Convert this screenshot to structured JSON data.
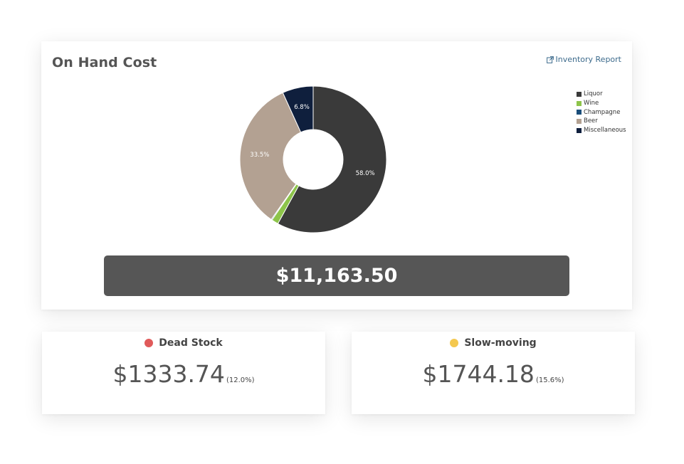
{
  "on_hand": {
    "title": "On Hand Cost",
    "report_link": "Inventory Report",
    "total": "$11,163.50"
  },
  "chart_data": {
    "type": "pie",
    "variant": "donut",
    "categories": [
      "Liquor",
      "Wine",
      "Champagne",
      "Beer",
      "Miscellaneous"
    ],
    "values": [
      58.0,
      1.5,
      0.2,
      33.5,
      6.8
    ],
    "slice_labels": [
      "58.0%",
      "",
      "",
      "33.5%",
      "6.8%"
    ],
    "colors": [
      "#3a3a3a",
      "#8dc44a",
      "#1b4e7a",
      "#b3a192",
      "#0f1f3d"
    ],
    "legend_position": "right"
  },
  "dead_stock": {
    "label": "Dead Stock",
    "value": "$1333.74",
    "percent": "(12.0%)",
    "dot_color": "#e05a5a"
  },
  "slow_moving": {
    "label": "Slow-moving",
    "value": "$1744.18",
    "percent": "(15.6%)",
    "dot_color": "#f4c84f"
  },
  "icons": {
    "report_link_icon": "external-link-icon"
  }
}
